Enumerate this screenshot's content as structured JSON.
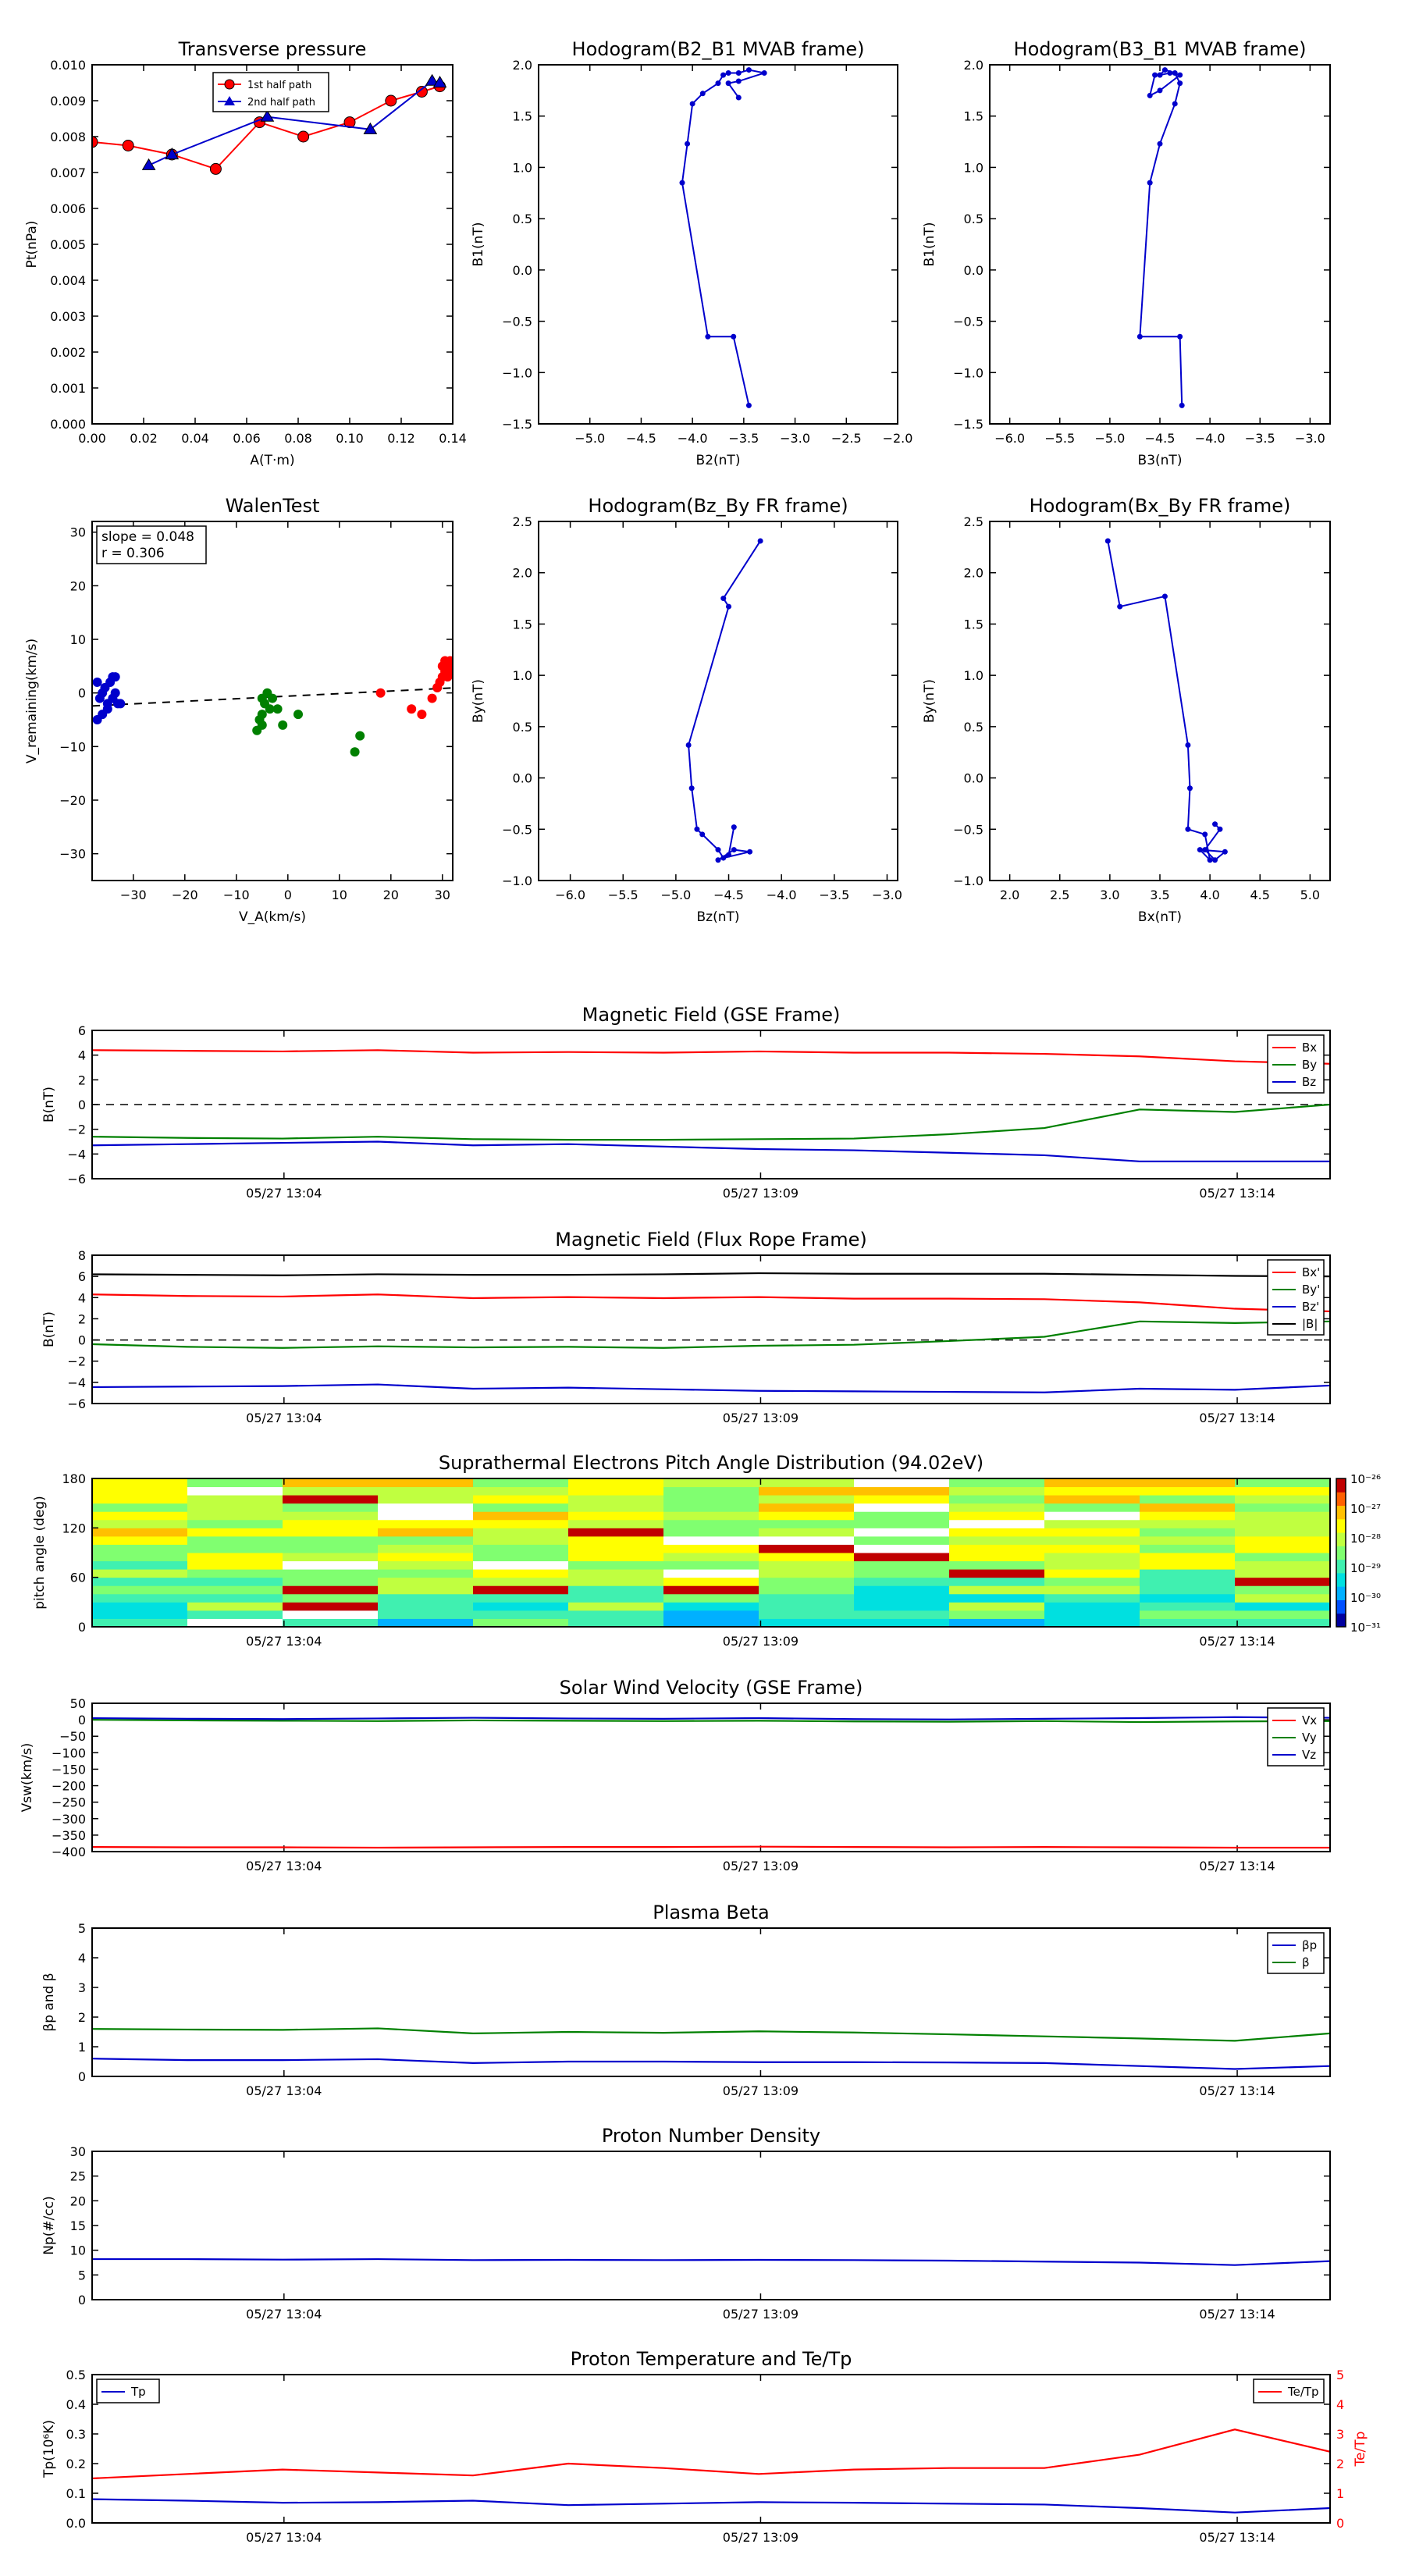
{
  "scatter_panels": [
    {
      "id": "pt",
      "title": "Transverse pressure",
      "xlabel": "A(T·m)",
      "ylabel": "Pt(nPa)",
      "xlim": [
        0,
        0.14
      ],
      "ylim": [
        0,
        0.01
      ],
      "xticks": [
        "0.00",
        "0.02",
        "0.04",
        "0.06",
        "0.08",
        "0.10",
        "0.12",
        "0.14"
      ],
      "xtickvals": [
        0,
        0.02,
        0.04,
        0.06,
        0.08,
        0.1,
        0.12,
        0.14
      ],
      "yticks": [
        "0.000",
        "0.001",
        "0.002",
        "0.003",
        "0.004",
        "0.005",
        "0.006",
        "0.007",
        "0.008",
        "0.009",
        "0.010"
      ],
      "ytickvals": [
        0,
        0.001,
        0.002,
        0.003,
        0.004,
        0.005,
        0.006,
        0.007,
        0.008,
        0.009,
        0.01
      ],
      "legend": [
        "1st half path",
        "2nd half path"
      ],
      "series": [
        {
          "name": "1st half path",
          "color": "#ff0000",
          "marker": "circle",
          "x": [
            0.0,
            0.014,
            0.031,
            0.048,
            0.065,
            0.082,
            0.1,
            0.116,
            0.128,
            0.135
          ],
          "y": [
            0.00785,
            0.00775,
            0.0075,
            0.0071,
            0.0084,
            0.008,
            0.0084,
            0.009,
            0.00925,
            0.0094
          ]
        },
        {
          "name": "2nd half path",
          "color": "#0000cc",
          "marker": "triangle",
          "x": [
            0.022,
            0.031,
            0.068,
            0.108,
            0.132,
            0.135
          ],
          "y": [
            0.0072,
            0.0075,
            0.00855,
            0.0082,
            0.00955,
            0.0095
          ]
        }
      ]
    },
    {
      "id": "h1",
      "title": "Hodogram(B2_B1 MVAB frame)",
      "xlabel": "B2(nT)",
      "ylabel": "B1(nT)",
      "xlim": [
        -5.5,
        -2.0
      ],
      "ylim": [
        -1.5,
        2.0
      ],
      "xticks": [
        "−5.0",
        "−4.5",
        "−4.0",
        "−3.5",
        "−3.0",
        "−2.5",
        "−2.0"
      ],
      "xtickvals": [
        -5.0,
        -4.5,
        -4.0,
        -3.5,
        -3.0,
        -2.5,
        -2.0
      ],
      "yticks": [
        "−1.5",
        "−1.0",
        "−0.5",
        "0.0",
        "0.5",
        "1.0",
        "1.5",
        "2.0"
      ],
      "ytickvals": [
        -1.5,
        -1.0,
        -0.5,
        0.0,
        0.5,
        1.0,
        1.5,
        2.0
      ],
      "series": [
        {
          "color": "#0000cc",
          "marker": "dot",
          "x": [
            -3.45,
            -3.6,
            -3.85,
            -4.1,
            -4.05,
            -4.0,
            -3.9,
            -3.75,
            -3.7,
            -3.65,
            -3.55,
            -3.45,
            -3.3,
            -3.55,
            -3.65,
            -3.55
          ],
          "y": [
            -1.32,
            -0.65,
            -0.65,
            0.85,
            1.23,
            1.62,
            1.72,
            1.82,
            1.9,
            1.92,
            1.92,
            1.95,
            1.92,
            1.84,
            1.82,
            1.68
          ]
        }
      ]
    },
    {
      "id": "h2",
      "title": "Hodogram(B3_B1 MVAB frame)",
      "xlabel": "B3(nT)",
      "ylabel": "B1(nT)",
      "xlim": [
        -6.2,
        -2.8
      ],
      "ylim": [
        -1.5,
        2.0
      ],
      "xticks": [
        "−6.0",
        "−5.5",
        "−5.0",
        "−4.5",
        "−4.0",
        "−3.5",
        "−3.0"
      ],
      "xtickvals": [
        -6.0,
        -5.5,
        -5.0,
        -4.5,
        -4.0,
        -3.5,
        -3.0
      ],
      "yticks": [
        "−1.5",
        "−1.0",
        "−0.5",
        "0.0",
        "0.5",
        "1.0",
        "1.5",
        "2.0"
      ],
      "ytickvals": [
        -1.5,
        -1.0,
        -0.5,
        0.0,
        0.5,
        1.0,
        1.5,
        2.0
      ],
      "series": [
        {
          "color": "#0000cc",
          "marker": "dot",
          "x": [
            -4.28,
            -4.3,
            -4.7,
            -4.6,
            -4.5,
            -4.35,
            -4.3,
            -4.35,
            -4.45,
            -4.5,
            -4.4,
            -4.3,
            -4.5,
            -4.6,
            -4.55
          ],
          "y": [
            -1.32,
            -0.65,
            -0.65,
            0.85,
            1.23,
            1.62,
            1.82,
            1.92,
            1.95,
            1.9,
            1.92,
            1.9,
            1.75,
            1.7,
            1.9
          ]
        }
      ]
    },
    {
      "id": "walen",
      "title": "WalenTest",
      "xlabel": "V_A(km/s)",
      "ylabel": "V_remaining(km/s)",
      "xlim": [
        -38,
        32
      ],
      "ylim": [
        -35,
        32
      ],
      "xticks": [
        "−30",
        "−20",
        "−10",
        "0",
        "10",
        "20",
        "30"
      ],
      "xtickvals": [
        -30,
        -20,
        -10,
        0,
        10,
        20,
        30
      ],
      "yticks": [
        "−30",
        "−20",
        "−10",
        "0",
        "10",
        "20",
        "30"
      ],
      "ytickvals": [
        -30,
        -20,
        -10,
        0,
        10,
        20,
        30
      ],
      "annotation": [
        "slope = 0.048",
        "r = 0.306"
      ],
      "fit": {
        "slope": 0.048,
        "intercept": -0.6
      },
      "series": [
        {
          "color": "#0000cc",
          "marker": "circle",
          "x": [
            -37,
            -36.5,
            -36,
            -35.5,
            -35,
            -34.5,
            -34,
            -33.5,
            -33,
            -34,
            -35,
            -36,
            -32.5,
            -33.5,
            -37
          ],
          "y": [
            2,
            -1,
            0,
            1,
            -3,
            2,
            3,
            0,
            -2,
            -1,
            -2,
            -4,
            -2,
            3,
            -5
          ]
        },
        {
          "color": "#008000",
          "marker": "circle",
          "x": [
            -6,
            -5.5,
            -5,
            -4.5,
            -4,
            -3.5,
            -3,
            -5,
            -2,
            -1,
            2,
            -5,
            14,
            13
          ],
          "y": [
            -7,
            -5,
            -4,
            -2,
            0,
            -3,
            -1,
            -6,
            -3,
            -6,
            -4,
            -1,
            -8,
            -11
          ]
        },
        {
          "color": "#ff0000",
          "marker": "circle",
          "x": [
            18,
            24,
            26,
            28,
            29,
            29.5,
            30,
            30.5,
            31,
            31.5,
            30,
            29,
            31,
            30.5,
            31.5
          ],
          "y": [
            0,
            -3,
            -4,
            -1,
            1,
            2,
            3,
            4,
            5,
            6,
            5,
            1,
            3,
            6,
            4
          ]
        }
      ]
    },
    {
      "id": "h3",
      "title": "Hodogram(Bz_By FR frame)",
      "xlabel": "Bz(nT)",
      "ylabel": "By(nT)",
      "xlim": [
        -6.3,
        -2.9
      ],
      "ylim": [
        -1.0,
        2.5
      ],
      "xticks": [
        "−6.0",
        "−5.5",
        "−5.0",
        "−4.5",
        "−4.0",
        "−3.5",
        "−3.0"
      ],
      "xtickvals": [
        -6.0,
        -5.5,
        -5.0,
        -4.5,
        -4.0,
        -3.5,
        -3.0
      ],
      "yticks": [
        "−1.0",
        "−0.5",
        "0.0",
        "0.5",
        "1.0",
        "1.5",
        "2.0",
        "2.5"
      ],
      "ytickvals": [
        -1.0,
        -0.5,
        0.0,
        0.5,
        1.0,
        1.5,
        2.0,
        2.5
      ],
      "series": [
        {
          "color": "#0000cc",
          "marker": "dot",
          "x": [
            -4.2,
            -4.55,
            -4.5,
            -4.88,
            -4.85,
            -4.8,
            -4.75,
            -4.6,
            -4.55,
            -4.3,
            -4.45,
            -4.6,
            -4.5,
            -4.45
          ],
          "y": [
            2.31,
            1.75,
            1.67,
            0.32,
            -0.1,
            -0.5,
            -0.55,
            -0.7,
            -0.78,
            -0.72,
            -0.7,
            -0.8,
            -0.75,
            -0.48
          ]
        }
      ]
    },
    {
      "id": "h4",
      "title": "Hodogram(Bx_By FR frame)",
      "xlabel": "Bx(nT)",
      "ylabel": "By(nT)",
      "xlim": [
        1.8,
        5.2
      ],
      "ylim": [
        -1.0,
        2.5
      ],
      "xticks": [
        "2.0",
        "2.5",
        "3.0",
        "3.5",
        "4.0",
        "4.5",
        "5.0"
      ],
      "xtickvals": [
        2.0,
        2.5,
        3.0,
        3.5,
        4.0,
        4.5,
        5.0
      ],
      "yticks": [
        "−1.0",
        "−0.5",
        "0.0",
        "0.5",
        "1.0",
        "1.5",
        "2.0",
        "2.5"
      ],
      "ytickvals": [
        -1.0,
        -0.5,
        0.0,
        0.5,
        1.0,
        1.5,
        2.0,
        2.5
      ],
      "series": [
        {
          "color": "#0000cc",
          "marker": "dot",
          "x": [
            2.98,
            3.1,
            3.55,
            3.78,
            3.8,
            3.78,
            3.95,
            4.0,
            3.9,
            4.15,
            4.05,
            3.95,
            4.1,
            4.05
          ],
          "y": [
            2.31,
            1.67,
            1.77,
            0.32,
            -0.1,
            -0.5,
            -0.55,
            -0.8,
            -0.7,
            -0.72,
            -0.8,
            -0.7,
            -0.5,
            -0.45
          ]
        }
      ]
    }
  ],
  "timeseries_panels": [
    {
      "id": "bgse",
      "title": "Magnetic Field (GSE Frame)",
      "ylabel": "B(nT)",
      "ylim": [
        -6,
        6
      ],
      "yticks": [
        "−6",
        "−4",
        "−2",
        "0",
        "2",
        "4",
        "6"
      ],
      "ytickvals": [
        -6,
        -4,
        -2,
        0,
        2,
        4,
        6
      ],
      "zero_line": true,
      "legend_pos": "right",
      "series": [
        {
          "name": "Bx",
          "color": "#ff0000",
          "values": [
            4.4,
            4.35,
            4.3,
            4.4,
            4.2,
            4.25,
            4.2,
            4.3,
            4.2,
            4.2,
            4.1,
            3.9,
            3.5,
            3.3
          ]
        },
        {
          "name": "By",
          "color": "#008000",
          "values": [
            -2.6,
            -2.7,
            -2.75,
            -2.6,
            -2.8,
            -2.85,
            -2.85,
            -2.8,
            -2.75,
            -2.4,
            -1.9,
            -0.4,
            -0.6,
            0
          ]
        },
        {
          "name": "Bz",
          "color": "#0000cc",
          "values": [
            -3.3,
            -3.2,
            -3.1,
            -3.0,
            -3.3,
            -3.2,
            -3.4,
            -3.6,
            -3.7,
            -3.9,
            -4.1,
            -4.6,
            -4.6,
            -4.6
          ]
        }
      ]
    },
    {
      "id": "bfr",
      "title": "Magnetic Field (Flux Rope Frame)",
      "ylabel": "B(nT)",
      "ylim": [
        -6,
        8
      ],
      "yticks": [
        "−6",
        "−4",
        "−2",
        "0",
        "2",
        "4",
        "6",
        "8"
      ],
      "ytickvals": [
        -6,
        -4,
        -2,
        0,
        2,
        4,
        6,
        8
      ],
      "zero_line": true,
      "legend_pos": "right",
      "series": [
        {
          "name": "Bx'",
          "color": "#ff0000",
          "values": [
            4.3,
            4.15,
            4.1,
            4.3,
            3.95,
            4.05,
            3.95,
            4.05,
            3.9,
            3.9,
            3.85,
            3.55,
            2.95,
            2.7
          ]
        },
        {
          "name": "By'",
          "color": "#008000",
          "values": [
            -0.4,
            -0.65,
            -0.75,
            -0.6,
            -0.7,
            -0.65,
            -0.75,
            -0.55,
            -0.45,
            -0.1,
            0.3,
            1.75,
            1.6,
            1.75
          ]
        },
        {
          "name": "Bz'",
          "color": "#0000cc",
          "values": [
            -4.45,
            -4.4,
            -4.35,
            -4.2,
            -4.6,
            -4.5,
            -4.65,
            -4.8,
            -4.85,
            -4.9,
            -4.95,
            -4.6,
            -4.7,
            -4.3
          ]
        },
        {
          "name": "|B|",
          "color": "#000000",
          "values": [
            6.2,
            6.15,
            6.1,
            6.2,
            6.15,
            6.15,
            6.2,
            6.3,
            6.25,
            6.25,
            6.25,
            6.15,
            6.05,
            6.0
          ]
        }
      ]
    },
    {
      "id": "vsw",
      "title": "Solar Wind Velocity (GSE Frame)",
      "ylabel": "Vsw(km/s)",
      "ylim": [
        -400,
        50
      ],
      "yticks": [
        "−400",
        "−350",
        "−300",
        "−250",
        "−200",
        "−150",
        "−100",
        "−50",
        "0",
        "50"
      ],
      "ytickvals": [
        -400,
        -350,
        -300,
        -250,
        -200,
        -150,
        -100,
        -50,
        0,
        50
      ],
      "zero_line": false,
      "legend_pos": "right",
      "series": [
        {
          "name": "Vx",
          "color": "#ff0000",
          "values": [
            -386,
            -387,
            -387,
            -388,
            -387,
            -386,
            -386,
            -385,
            -386,
            -387,
            -386,
            -387,
            -388,
            -388
          ]
        },
        {
          "name": "Vy",
          "color": "#008000",
          "values": [
            0,
            -2,
            -3,
            -4,
            -2,
            -3,
            -4,
            -3,
            -5,
            -6,
            -4,
            -7,
            -5,
            -4
          ]
        },
        {
          "name": "Vz",
          "color": "#0000cc",
          "values": [
            5,
            3,
            2,
            4,
            6,
            4,
            3,
            5,
            2,
            1,
            3,
            5,
            8,
            6
          ]
        }
      ]
    },
    {
      "id": "beta",
      "title": "Plasma Beta",
      "ylabel": "βp and β",
      "ylim": [
        0,
        5
      ],
      "yticks": [
        "0",
        "1",
        "2",
        "3",
        "4",
        "5"
      ],
      "ytickvals": [
        0,
        1,
        2,
        3,
        4,
        5
      ],
      "zero_line": false,
      "legend_pos": "right",
      "series": [
        {
          "name": "βp",
          "color": "#0000cc",
          "values": [
            0.6,
            0.55,
            0.55,
            0.58,
            0.45,
            0.5,
            0.5,
            0.48,
            0.48,
            0.47,
            0.45,
            0.35,
            0.25,
            0.35
          ]
        },
        {
          "name": "β",
          "color": "#008000",
          "values": [
            1.6,
            1.58,
            1.57,
            1.62,
            1.45,
            1.5,
            1.47,
            1.52,
            1.48,
            1.42,
            1.35,
            1.28,
            1.2,
            1.45
          ]
        }
      ]
    },
    {
      "id": "np",
      "title": "Proton Number Density",
      "ylabel": "Np(#/cc)",
      "ylim": [
        0,
        30
      ],
      "yticks": [
        "0",
        "5",
        "10",
        "15",
        "20",
        "25",
        "30"
      ],
      "ytickvals": [
        0,
        5,
        10,
        15,
        20,
        25,
        30
      ],
      "zero_line": false,
      "legend_pos": "none",
      "series": [
        {
          "name": "Np",
          "color": "#0000cc",
          "values": [
            8.2,
            8.2,
            8.1,
            8.2,
            8.0,
            8.05,
            8.0,
            8.05,
            8.0,
            7.9,
            7.7,
            7.5,
            7.0,
            7.8
          ]
        }
      ]
    },
    {
      "id": "tp",
      "title": "Proton Temperature and Te/Tp",
      "ylabel": "Tp(10⁶K)",
      "ylim": [
        0,
        0.5
      ],
      "yticks": [
        "0.0",
        "0.1",
        "0.2",
        "0.3",
        "0.4",
        "0.5"
      ],
      "ytickvals": [
        0,
        0.1,
        0.2,
        0.3,
        0.4,
        0.5
      ],
      "zero_line": false,
      "legend_pos": "left",
      "right_ylabel": "Te/Tp",
      "right_ylim": [
        0,
        5
      ],
      "right_yticks": [
        "0",
        "1",
        "2",
        "3",
        "4",
        "5"
      ],
      "right_ytickvals": [
        0,
        1,
        2,
        3,
        4,
        5
      ],
      "series": [
        {
          "name": "Tp",
          "color": "#0000cc",
          "values": [
            0.08,
            0.075,
            0.068,
            0.07,
            0.075,
            0.06,
            0.065,
            0.07,
            0.068,
            0.065,
            0.062,
            0.05,
            0.035,
            0.05
          ]
        }
      ],
      "right_series": [
        {
          "name": "Te/Tp",
          "color": "#ff0000",
          "values": [
            1.5,
            1.65,
            1.8,
            1.7,
            1.6,
            2.0,
            1.85,
            1.65,
            1.8,
            1.85,
            1.85,
            2.3,
            3.15,
            2.4
          ]
        }
      ]
    }
  ],
  "pad_panel": {
    "id": "pad",
    "title": "Suprathermal Electrons Pitch Angle Distribution (94.02eV)",
    "ylabel": "pitch angle (deg)",
    "ylim": [
      0,
      180
    ],
    "yticks": [
      "0",
      "60",
      "120",
      "180"
    ],
    "ytickvals": [
      0,
      60,
      120,
      180
    ],
    "colorbar_ticks": [
      "10⁻³¹",
      "10⁻³⁰",
      "10⁻²⁹",
      "10⁻²⁸",
      "10⁻²⁷",
      "10⁻²⁶"
    ],
    "n_time": 13,
    "n_pitch": 18
  },
  "time_axis": {
    "labels": [
      "05/27 13:04",
      "05/27 13:09",
      "05/27 13:14"
    ],
    "tick_fracs": [
      0.155,
      0.54,
      0.925
    ],
    "n_points": 14
  }
}
